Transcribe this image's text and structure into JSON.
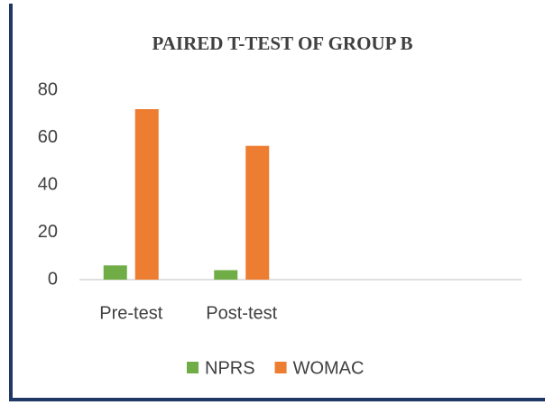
{
  "chart_data": {
    "type": "bar",
    "title": "PAIRED T-TEST OF GROUP B",
    "categories": [
      "Pre-test",
      "Post-test",
      null,
      null
    ],
    "series": [
      {
        "name": "NPRS",
        "color": "#70ad47",
        "values": [
          6,
          4,
          null,
          null
        ]
      },
      {
        "name": "WOMAC",
        "color": "#ed7d31",
        "values": [
          72,
          56.5,
          null,
          null
        ]
      }
    ],
    "ylim": [
      0,
      80
    ],
    "yticks": [
      0,
      20,
      40,
      60,
      80
    ],
    "grid": false,
    "legend": "bottom"
  }
}
